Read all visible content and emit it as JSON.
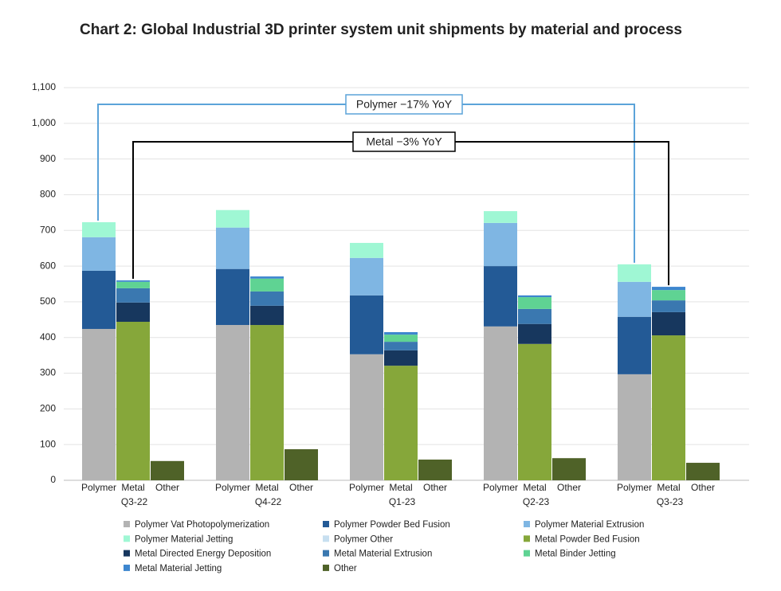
{
  "chart_data": {
    "type": "grouped-stacked-bar",
    "title": "Chart 2: Global Industrial 3D printer system unit shipments by material and process",
    "groups": [
      "Q3-22",
      "Q4-22",
      "Q1-23",
      "Q2-23",
      "Q3-23"
    ],
    "categories": [
      "Polymer",
      "Metal",
      "Other",
      "Polymer",
      "Metal",
      "Other",
      "Polymer",
      "Metal",
      "Other",
      "Polymer",
      "Metal",
      "Other",
      "Polymer",
      "Metal",
      "Other"
    ],
    "ylim": [
      0,
      1100
    ],
    "yticks": [
      0,
      100,
      200,
      300,
      400,
      500,
      600,
      700,
      800,
      900,
      {
        "value": 1000,
        "label": "1,000"
      },
      {
        "value": 1100,
        "label": "1,100"
      }
    ],
    "grid": true,
    "series": [
      {
        "name": "Polymer Vat Photopolymerization",
        "color": "#b3b3b3",
        "values": [
          424,
          null,
          null,
          435,
          null,
          null,
          353,
          null,
          null,
          431,
          null,
          null,
          297,
          null,
          null
        ]
      },
      {
        "name": "Polymer Powder Bed Fusion",
        "color": "#235a96",
        "values": [
          163,
          null,
          null,
          157,
          null,
          null,
          165,
          null,
          null,
          169,
          null,
          null,
          161,
          null,
          null
        ]
      },
      {
        "name": "Polymer Material Extrusion",
        "color": "#7fb6e3",
        "values": [
          94,
          null,
          null,
          116,
          null,
          null,
          105,
          null,
          null,
          121,
          null,
          null,
          98,
          null,
          null
        ]
      },
      {
        "name": "Polymer Material Jetting",
        "color": "#9ff7d4",
        "values": [
          42,
          null,
          null,
          49,
          null,
          null,
          42,
          null,
          null,
          33,
          null,
          null,
          49,
          null,
          null
        ]
      },
      {
        "name": "Polymer Other",
        "color": "#c7dff0",
        "values": [
          0,
          null,
          null,
          0,
          null,
          null,
          0,
          null,
          null,
          0,
          null,
          null,
          0,
          null,
          null
        ]
      },
      {
        "name": "Metal Powder Bed Fusion",
        "color": "#86a73a",
        "values": [
          null,
          444,
          null,
          null,
          435,
          null,
          null,
          321,
          null,
          null,
          382,
          null,
          null,
          406,
          null
        ]
      },
      {
        "name": "Metal Directed Energy Deposition",
        "color": "#17375e",
        "values": [
          null,
          54,
          null,
          null,
          54,
          null,
          null,
          43,
          null,
          null,
          56,
          null,
          null,
          65,
          null
        ]
      },
      {
        "name": "Metal Material Extrusion",
        "color": "#3a78b0",
        "values": [
          null,
          40,
          null,
          null,
          40,
          null,
          null,
          24,
          null,
          null,
          42,
          null,
          null,
          33,
          null
        ]
      },
      {
        "name": "Metal Binder Jetting",
        "color": "#5fd393",
        "values": [
          null,
          18,
          null,
          null,
          36,
          null,
          null,
          20,
          null,
          null,
          33,
          null,
          null,
          29,
          null
        ]
      },
      {
        "name": "Metal Material Jetting",
        "color": "#3d86cf",
        "values": [
          null,
          4,
          null,
          null,
          6,
          null,
          null,
          7,
          null,
          null,
          5,
          null,
          null,
          9,
          null
        ]
      },
      {
        "name": "Other",
        "color": "#4f6228",
        "values": [
          null,
          null,
          54,
          null,
          null,
          87,
          null,
          null,
          58,
          null,
          null,
          62,
          null,
          null,
          49
        ]
      }
    ],
    "annotations": [
      {
        "text": "Polymer −17% YoY",
        "color": "#5ba3d9"
      },
      {
        "text": "Metal −3% YoY",
        "color": "#000000"
      }
    ]
  }
}
